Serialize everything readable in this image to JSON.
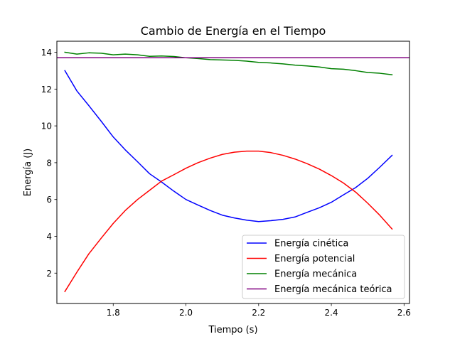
{
  "chart_data": {
    "type": "line",
    "title": "Cambio de Energía en el Tiempo",
    "xlabel": "Tiempo (s)",
    "ylabel": "Energía (J)",
    "xlim": [
      1.645,
      2.615
    ],
    "ylim": [
      0.35,
      14.6
    ],
    "xticks": [
      1.8,
      2.0,
      2.2,
      2.4,
      2.6
    ],
    "xtick_labels": [
      "1.8",
      "2.0",
      "2.2",
      "2.4",
      "2.6"
    ],
    "yticks": [
      2,
      4,
      6,
      8,
      10,
      12,
      14
    ],
    "ytick_labels": [
      "2",
      "4",
      "6",
      "8",
      "10",
      "12",
      "14"
    ],
    "grid": false,
    "legend_position": "lower-right",
    "series": [
      {
        "name": "Energía cinética",
        "color": "#0000ff",
        "x": [
          1.667,
          1.7,
          1.733,
          1.767,
          1.8,
          1.833,
          1.867,
          1.9,
          1.933,
          1.967,
          2.0,
          2.033,
          2.067,
          2.1,
          2.133,
          2.167,
          2.2,
          2.233,
          2.267,
          2.3,
          2.333,
          2.367,
          2.4,
          2.433,
          2.467,
          2.5,
          2.533,
          2.567
        ],
        "y": [
          13.0,
          11.9,
          11.1,
          10.25,
          9.4,
          8.7,
          8.05,
          7.4,
          6.95,
          6.45,
          6.0,
          5.7,
          5.4,
          5.15,
          5.0,
          4.88,
          4.8,
          4.85,
          4.92,
          5.05,
          5.3,
          5.55,
          5.85,
          6.25,
          6.65,
          7.15,
          7.75,
          8.4
        ]
      },
      {
        "name": "Energía potencial",
        "color": "#ff0000",
        "x": [
          1.667,
          1.7,
          1.733,
          1.767,
          1.8,
          1.833,
          1.867,
          1.9,
          1.933,
          1.967,
          2.0,
          2.033,
          2.067,
          2.1,
          2.133,
          2.167,
          2.2,
          2.233,
          2.267,
          2.3,
          2.333,
          2.367,
          2.4,
          2.433,
          2.467,
          2.5,
          2.533,
          2.567
        ],
        "y": [
          1.0,
          2.05,
          3.05,
          3.9,
          4.7,
          5.4,
          6.0,
          6.5,
          7.0,
          7.35,
          7.7,
          8.0,
          8.25,
          8.45,
          8.57,
          8.63,
          8.63,
          8.55,
          8.4,
          8.2,
          7.95,
          7.65,
          7.3,
          6.9,
          6.4,
          5.8,
          5.15,
          4.4
        ]
      },
      {
        "name": "Energía mecánica",
        "color": "#008000",
        "x": [
          1.667,
          1.7,
          1.733,
          1.767,
          1.8,
          1.833,
          1.867,
          1.9,
          1.933,
          1.967,
          2.0,
          2.033,
          2.067,
          2.1,
          2.133,
          2.167,
          2.2,
          2.233,
          2.267,
          2.3,
          2.333,
          2.367,
          2.4,
          2.433,
          2.467,
          2.5,
          2.533,
          2.567
        ],
        "y": [
          14.0,
          13.9,
          13.97,
          13.95,
          13.86,
          13.9,
          13.86,
          13.78,
          13.8,
          13.77,
          13.7,
          13.66,
          13.6,
          13.58,
          13.56,
          13.52,
          13.45,
          13.42,
          13.37,
          13.3,
          13.26,
          13.2,
          13.11,
          13.08,
          13.0,
          12.9,
          12.86,
          12.78
        ]
      },
      {
        "name": "Energía mecánica teórica",
        "color": "#800080",
        "x": [
          1.645,
          2.615
        ],
        "y": [
          13.7,
          13.7
        ]
      }
    ]
  }
}
